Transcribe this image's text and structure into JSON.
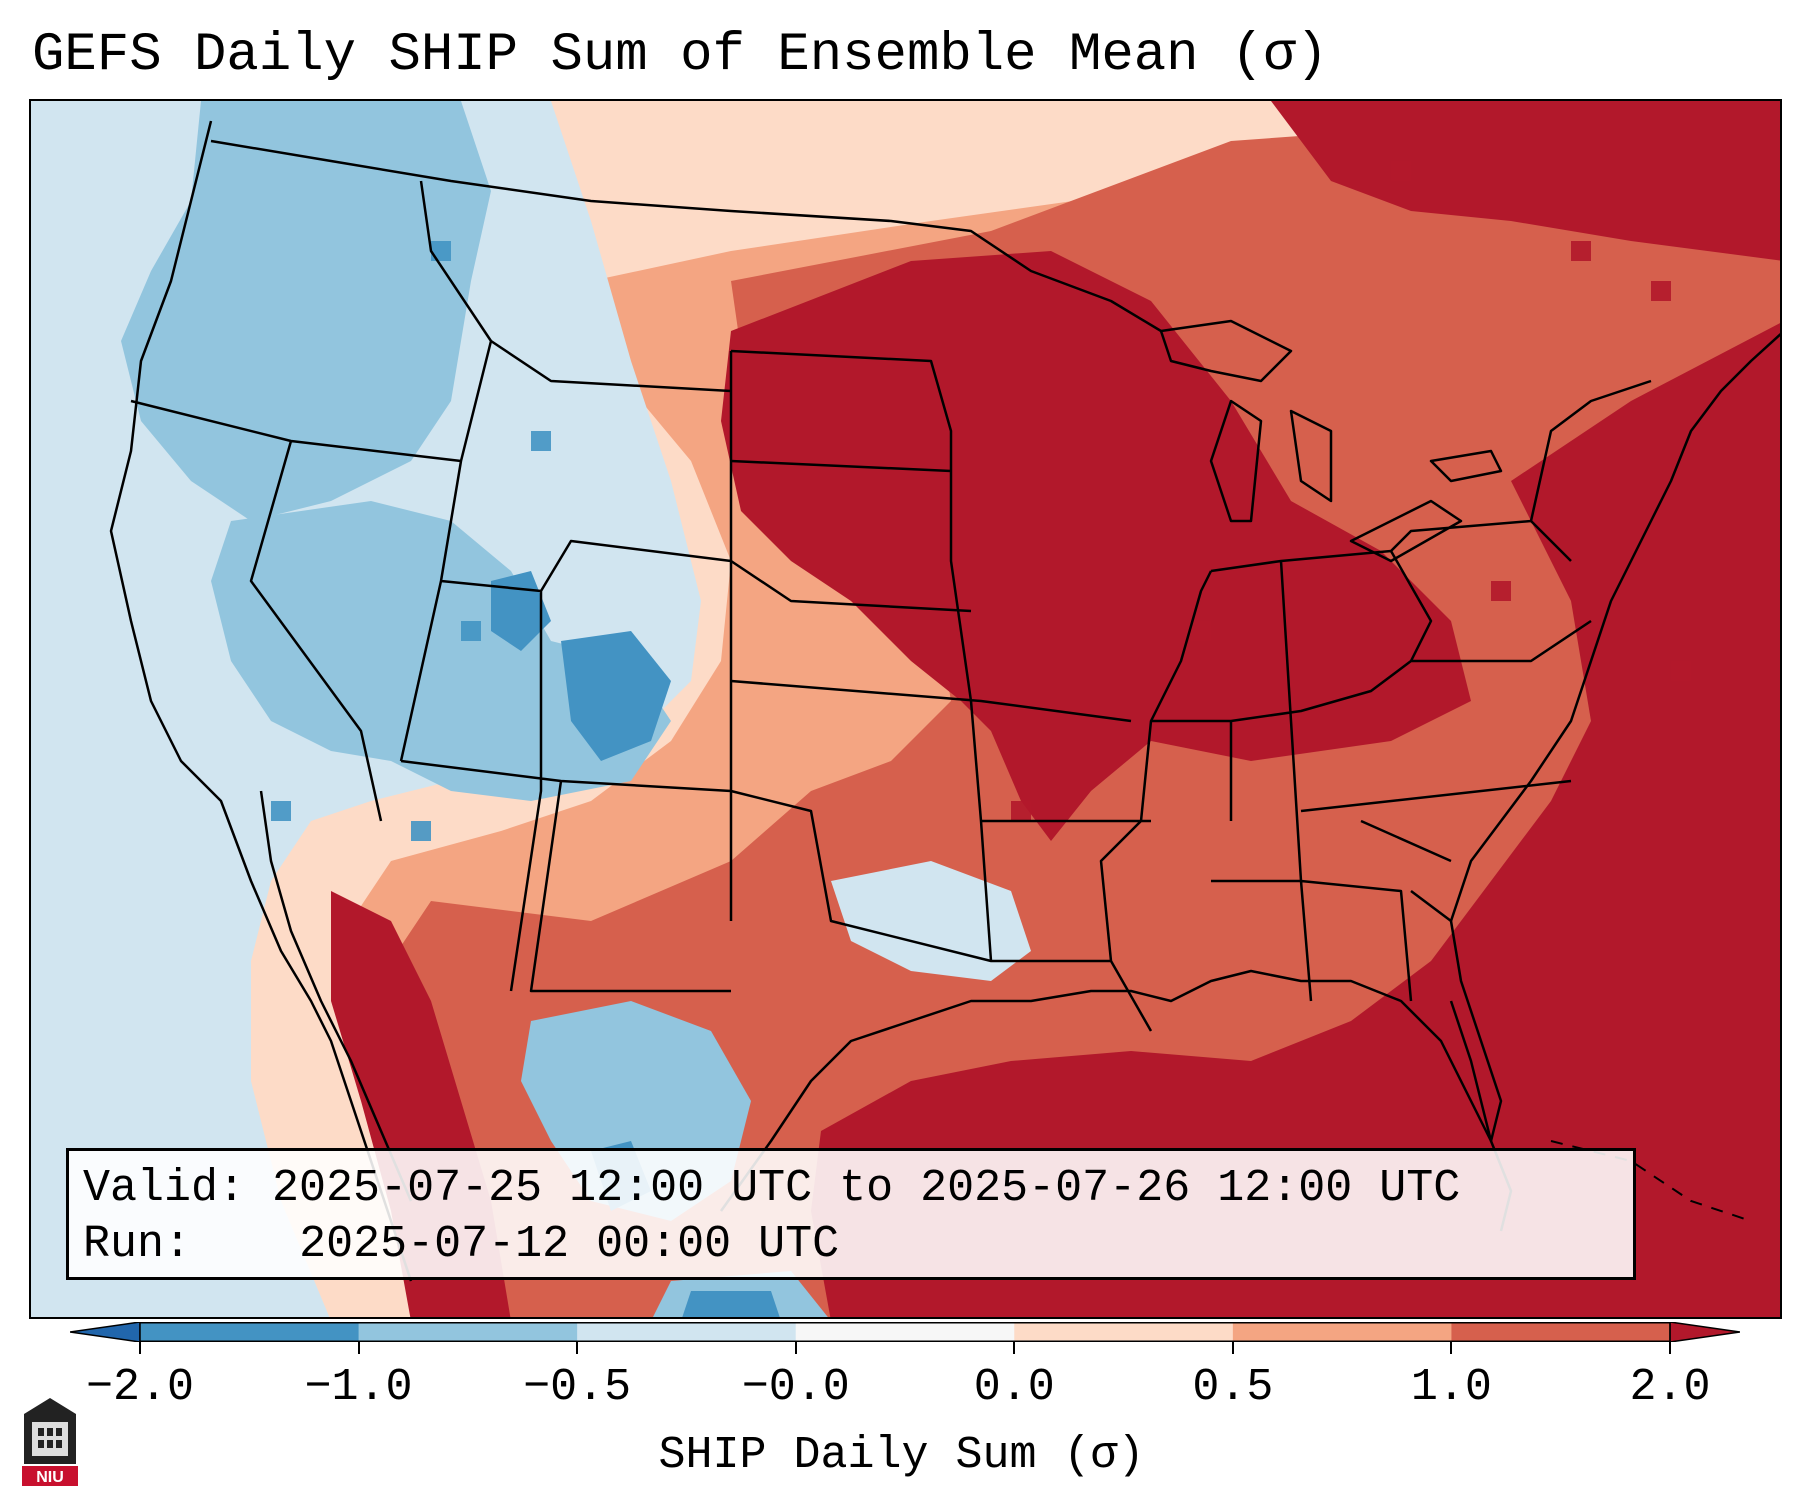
{
  "title": "GEFS Daily SHIP Sum of Ensemble Mean (σ)",
  "info": {
    "valid_label": "Valid:",
    "valid_value": "2025-07-25 12:00 UTC to 2025-07-26 12:00 UTC",
    "run_label": "Run:",
    "run_value": "2025-07-12 00:00 UTC"
  },
  "colorbar": {
    "label": "SHIP Daily Sum (σ)",
    "ticks": [
      "−2.0",
      "−1.0",
      "−0.5",
      "−0.0",
      "0.0",
      "0.5",
      "1.0",
      "2.0"
    ],
    "bins": [
      {
        "range": "<-2.0",
        "color": "#2166ac"
      },
      {
        "range": "-2.0 to -1.0",
        "color": "#4393c3"
      },
      {
        "range": "-1.0 to -0.5",
        "color": "#92c5de"
      },
      {
        "range": "-0.5 to -0.0",
        "color": "#d1e5f0"
      },
      {
        "range": "-0.0 to 0.0",
        "color": "#f7f7f7"
      },
      {
        "range": "0.0 to 0.5",
        "color": "#fddbc7"
      },
      {
        "range": "0.5 to 1.0",
        "color": "#f4a582"
      },
      {
        "range": "1.0 to 2.0",
        "color": "#d6604d"
      },
      {
        "range": ">2.0",
        "color": "#b2182b"
      }
    ]
  },
  "logo": {
    "text": "NIU"
  },
  "colors": {
    "neg_strong": "#4393c3",
    "neg_mid": "#92c5de",
    "neg_weak": "#d1e5f0",
    "neutral": "#f7f7f7",
    "pos_weak": "#fddbc7",
    "pos_mid": "#f4a582",
    "pos_strong": "#d6604d",
    "pos_extreme": "#b2182b"
  }
}
